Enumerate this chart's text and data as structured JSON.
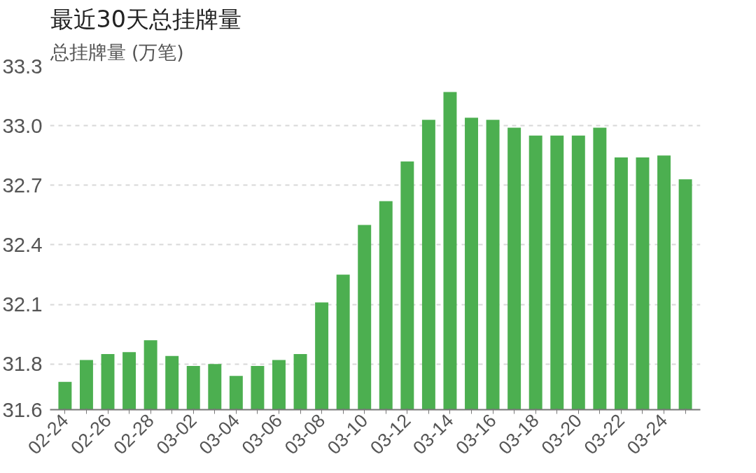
{
  "chart_data": {
    "type": "bar",
    "title": "最近30天总挂牌量",
    "ylabel": "总挂牌量 (万笔)",
    "categories": [
      "02-24",
      null,
      "02-26",
      null,
      "02-28",
      null,
      "03-02",
      null,
      "03-04",
      null,
      "03-06",
      null,
      "03-08",
      null,
      "03-10",
      null,
      "03-12",
      null,
      "03-14",
      null,
      "03-16",
      null,
      "03-18",
      null,
      "03-20",
      null,
      "03-22",
      null,
      "03-24",
      null
    ],
    "values": [
      31.71,
      31.82,
      31.85,
      31.86,
      31.92,
      31.84,
      31.79,
      31.8,
      31.74,
      31.79,
      31.82,
      31.85,
      32.11,
      32.25,
      32.5,
      32.62,
      32.82,
      33.03,
      33.17,
      33.04,
      33.03,
      32.99,
      32.95,
      32.95,
      32.95,
      32.99,
      32.84,
      32.84,
      32.85,
      32.73
    ],
    "color": "#4caf50",
    "ylim": [
      31.57,
      33.3
    ],
    "yticks": [
      {
        "value": 31.57,
        "label": "31.6"
      },
      {
        "value": 31.8,
        "label": "31.8"
      },
      {
        "value": 32.1,
        "label": "32.1"
      },
      {
        "value": 32.4,
        "label": "32.4"
      },
      {
        "value": 32.7,
        "label": "32.7"
      },
      {
        "value": 33.0,
        "label": "33.0"
      },
      {
        "value": 33.3,
        "label": "33.3"
      }
    ],
    "grid": "y"
  }
}
